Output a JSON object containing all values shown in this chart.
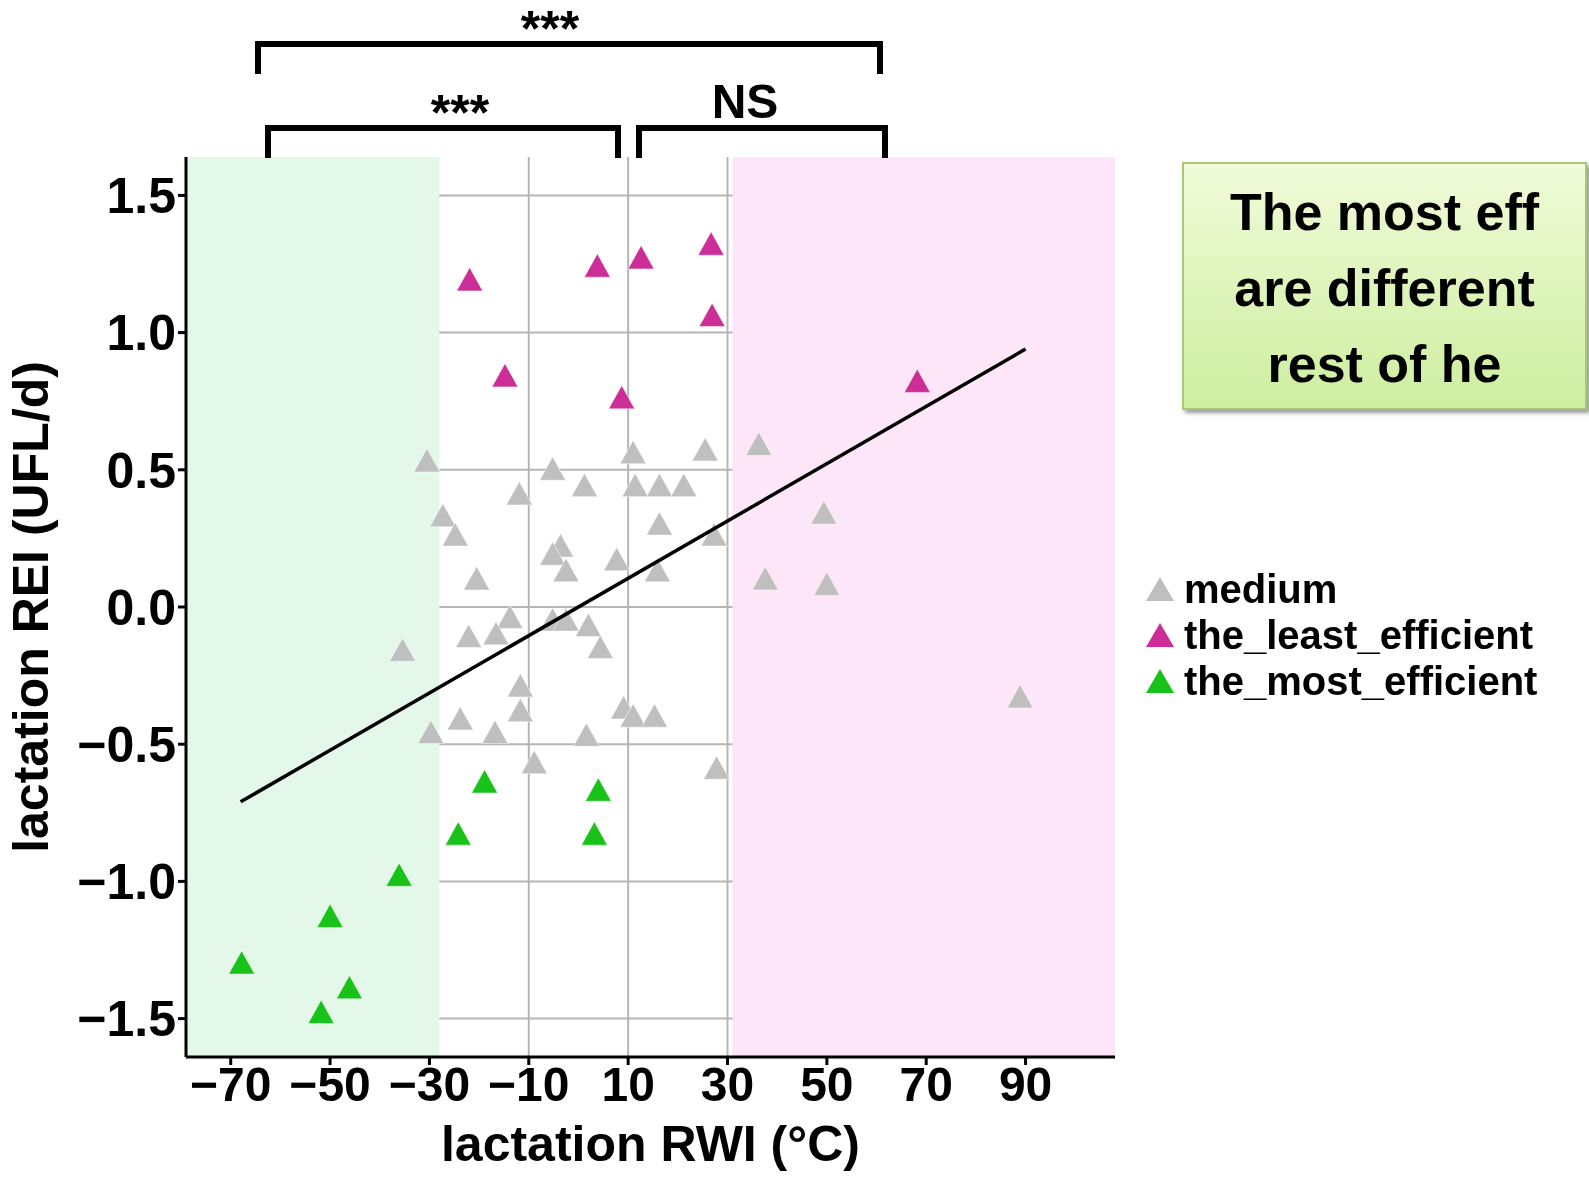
{
  "chart_data": {
    "type": "scatter",
    "xlabel": "lactation RWI (°C)",
    "ylabel": "lactation REI (UFL/d)",
    "xlim": [
      -79,
      108
    ],
    "ylim": [
      -1.64,
      1.64
    ],
    "xticks": [
      {
        "value": -70,
        "label": "−70"
      },
      {
        "value": -50,
        "label": "−50"
      },
      {
        "value": -30,
        "label": "−30"
      },
      {
        "value": -10,
        "label": "−10"
      },
      {
        "value": 10,
        "label": "10"
      },
      {
        "value": 30,
        "label": "30"
      },
      {
        "value": 50,
        "label": "50"
      },
      {
        "value": 70,
        "label": "70"
      },
      {
        "value": 90,
        "label": "90"
      }
    ],
    "yticks": [
      {
        "value": -1.5,
        "label": "−1.5"
      },
      {
        "value": -1,
        "label": "−1.0"
      },
      {
        "value": -0.5,
        "label": "−0.5"
      },
      {
        "value": 0,
        "label": "0.0"
      },
      {
        "value": 0.5,
        "label": "0.5"
      },
      {
        "value": 1,
        "label": "1.0"
      },
      {
        "value": 1.5,
        "label": "1.5"
      }
    ],
    "grid": true,
    "legend": "right",
    "marker": "triangle",
    "bands": [
      {
        "axis": "x",
        "from": -79,
        "to": -28,
        "label": null,
        "color": "#e3f8e8"
      },
      {
        "axis": "x",
        "from": 31,
        "to": 108,
        "label": null,
        "color": "#fce6f7"
      }
    ],
    "annotations": [
      "***",
      "***",
      "NS",
      "The most eff\nare different\nrest of he"
    ],
    "series": [
      {
        "name": "medium",
        "color": "#bfbfbf",
        "x": [
          -30.5,
          -27.3,
          -24.8,
          -20.5,
          -5.2,
          -11.9,
          1.2,
          11,
          11.4,
          16.3,
          21.2,
          25.5,
          36.3,
          16.3,
          -3.6,
          -5.2,
          -2.5,
          7.7,
          15.9,
          27.3,
          49.4,
          37.6,
          50,
          -13.8,
          -16.6,
          -22.1,
          -5.2,
          -2.5,
          2,
          4.4,
          -35.4,
          -11.7,
          -11.7,
          -29.7,
          -23.8,
          -16.8,
          -8.9,
          1.6,
          9.1,
          11,
          15.3,
          27.8,
          88.9
        ],
        "values": [
          0.53,
          0.33,
          0.26,
          0.1,
          0.5,
          0.41,
          0.44,
          0.56,
          0.44,
          0.44,
          0.44,
          0.57,
          0.59,
          0.3,
          0.22,
          0.19,
          0.13,
          0.17,
          0.13,
          0.26,
          0.34,
          0.1,
          0.08,
          -0.04,
          -0.1,
          -0.11,
          -0.05,
          -0.05,
          -0.07,
          -0.15,
          -0.16,
          -0.29,
          -0.38,
          -0.46,
          -0.41,
          -0.46,
          -0.57,
          -0.47,
          -0.37,
          -0.4,
          -0.4,
          -0.59,
          -0.33
        ]
      },
      {
        "name": "the_least_efficient",
        "color": "#cc2d96",
        "x": [
          -21.9,
          3.8,
          12.6,
          26.7,
          26.9,
          -14.8,
          8.7,
          68.2
        ],
        "values": [
          1.19,
          1.24,
          1.27,
          1.32,
          1.06,
          0.84,
          0.76,
          0.82
        ]
      },
      {
        "name": "the_most_efficient",
        "color": "#19c219",
        "x": [
          -67.8,
          -51.8,
          -50,
          -46.1,
          -36.1,
          -24.2,
          -18.9,
          4,
          3.2
        ],
        "values": [
          -1.3,
          -1.48,
          -1.13,
          -1.39,
          -0.98,
          -0.83,
          -0.64,
          -0.67,
          -0.83
        ]
      },
      {
        "type": "line",
        "marker": "none",
        "color": "#000000",
        "x": [
          -68,
          90
        ],
        "values": [
          -0.71,
          0.94
        ]
      }
    ]
  }
}
